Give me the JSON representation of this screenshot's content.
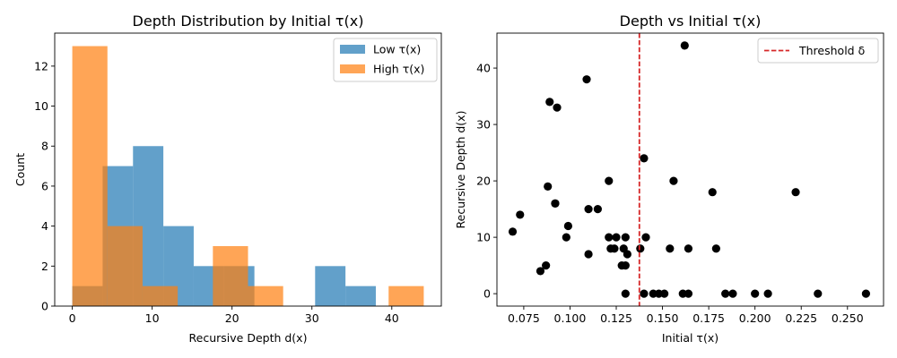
{
  "chart_data": [
    {
      "type": "bar",
      "subtype": "histogram",
      "title": "Depth Distribution by Initial τ(x)",
      "xlabel": "Recursive Depth d(x)",
      "ylabel": "Count",
      "xlim": [
        -2.2,
        46.2
      ],
      "ylim": [
        0,
        13.65
      ],
      "xticks": [
        0,
        10,
        20,
        30,
        40
      ],
      "yticks": [
        0,
        2,
        4,
        6,
        8,
        10,
        12
      ],
      "grid": false,
      "legend_position": "top-right",
      "series": [
        {
          "name": "Low τ(x)",
          "color": "#1f77b4",
          "opacity": 0.7,
          "bin_edges": [
            0,
            3.8,
            7.6,
            11.4,
            15.2,
            19.0,
            22.8,
            26.6,
            30.4,
            34.2,
            38.0
          ],
          "counts": [
            1,
            7,
            8,
            4,
            2,
            2,
            0,
            0,
            2,
            1
          ]
        },
        {
          "name": "High τ(x)",
          "color": "#ff7f0e",
          "opacity": 0.7,
          "bin_edges": [
            0,
            4.4,
            8.8,
            13.2,
            17.6,
            22.0,
            26.4,
            30.8,
            35.2,
            39.6,
            44.0
          ],
          "counts": [
            13,
            4,
            1,
            0,
            3,
            1,
            0,
            0,
            0,
            1
          ]
        }
      ]
    },
    {
      "type": "scatter",
      "title": "Depth vs Initial τ(x)",
      "xlabel": "Initial τ(x)",
      "ylabel": "Recursive Depth d(x)",
      "xlim": [
        0.0605,
        0.2695
      ],
      "ylim": [
        -2.2,
        46.2
      ],
      "xticks": [
        0.075,
        0.1,
        0.125,
        0.15,
        0.175,
        0.2,
        0.225,
        0.25
      ],
      "xtick_labels": [
        "0.075",
        "0.100",
        "0.125",
        "0.150",
        "0.175",
        "0.200",
        "0.225",
        "0.250"
      ],
      "yticks": [
        0,
        10,
        20,
        30,
        40
      ],
      "grid": false,
      "legend_position": "top-right",
      "marker_color": "#000000",
      "threshold": {
        "name": "Threshold δ",
        "x": 0.1375,
        "color": "#d62728",
        "style": "dashed"
      },
      "points": [
        [
          0.069,
          11
        ],
        [
          0.073,
          14
        ],
        [
          0.084,
          4
        ],
        [
          0.087,
          5
        ],
        [
          0.088,
          19
        ],
        [
          0.089,
          34
        ],
        [
          0.092,
          16
        ],
        [
          0.092,
          16
        ],
        [
          0.093,
          33
        ],
        [
          0.098,
          10
        ],
        [
          0.099,
          12
        ],
        [
          0.109,
          38
        ],
        [
          0.11,
          15
        ],
        [
          0.11,
          7
        ],
        [
          0.115,
          15
        ],
        [
          0.121,
          10
        ],
        [
          0.121,
          20
        ],
        [
          0.122,
          8
        ],
        [
          0.124,
          8
        ],
        [
          0.125,
          10
        ],
        [
          0.128,
          5
        ],
        [
          0.129,
          8
        ],
        [
          0.13,
          10
        ],
        [
          0.13,
          0
        ],
        [
          0.13,
          5
        ],
        [
          0.131,
          7
        ],
        [
          0.138,
          8
        ],
        [
          0.14,
          24
        ],
        [
          0.14,
          0
        ],
        [
          0.141,
          10
        ],
        [
          0.145,
          0
        ],
        [
          0.148,
          0
        ],
        [
          0.151,
          0
        ],
        [
          0.154,
          8
        ],
        [
          0.156,
          20
        ],
        [
          0.161,
          0
        ],
        [
          0.162,
          44
        ],
        [
          0.164,
          0
        ],
        [
          0.164,
          8
        ],
        [
          0.177,
          18
        ],
        [
          0.179,
          8
        ],
        [
          0.184,
          0
        ],
        [
          0.188,
          0
        ],
        [
          0.2,
          0
        ],
        [
          0.207,
          0
        ],
        [
          0.222,
          18
        ],
        [
          0.234,
          0
        ],
        [
          0.26,
          0
        ]
      ]
    }
  ]
}
